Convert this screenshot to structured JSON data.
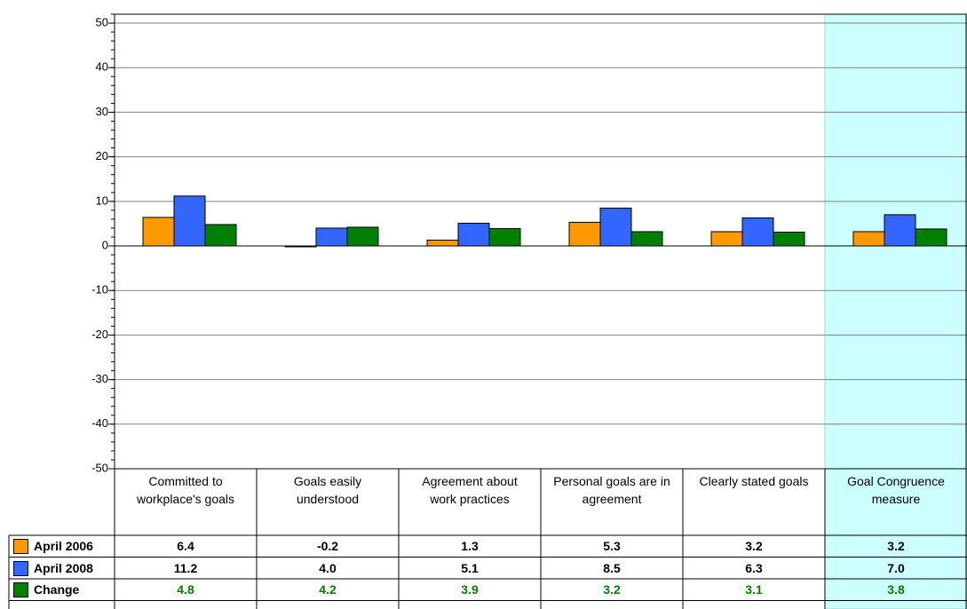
{
  "chart_data": {
    "type": "bar",
    "categories": [
      "Committed to workplace's goals",
      "Goals easily understood",
      "Agreement about work practices",
      "Personal goals are in agreement",
      "Clearly stated goals",
      "Goal Congruence measure"
    ],
    "series": [
      {
        "name": "April 2006",
        "color": "#ff9900",
        "values": [
          6.4,
          -0.2,
          1.3,
          5.3,
          3.2,
          3.2
        ],
        "value_labels": [
          "6.4",
          "-0.2",
          "1.3",
          "5.3",
          "3.2",
          "3.2"
        ]
      },
      {
        "name": "April 2008",
        "color": "#3366ff",
        "values": [
          11.2,
          4.0,
          5.1,
          8.5,
          6.3,
          7.0
        ],
        "value_labels": [
          "11.2",
          "4.0",
          "5.1",
          "8.5",
          "6.3",
          "7.0"
        ]
      },
      {
        "name": "Change",
        "color": "#008000",
        "values": [
          4.8,
          4.2,
          3.9,
          3.2,
          3.1,
          3.8
        ],
        "value_labels": [
          "4.8",
          "4.2",
          "3.9",
          "3.2",
          "3.1",
          "3.8"
        ]
      }
    ],
    "ylim": [
      -50,
      52
    ],
    "yticks": [
      -50,
      -40,
      -30,
      -20,
      -10,
      0,
      10,
      20,
      30,
      40,
      50
    ],
    "grid": true,
    "highlight_category": 5,
    "highlight_color": "#ccffff"
  }
}
